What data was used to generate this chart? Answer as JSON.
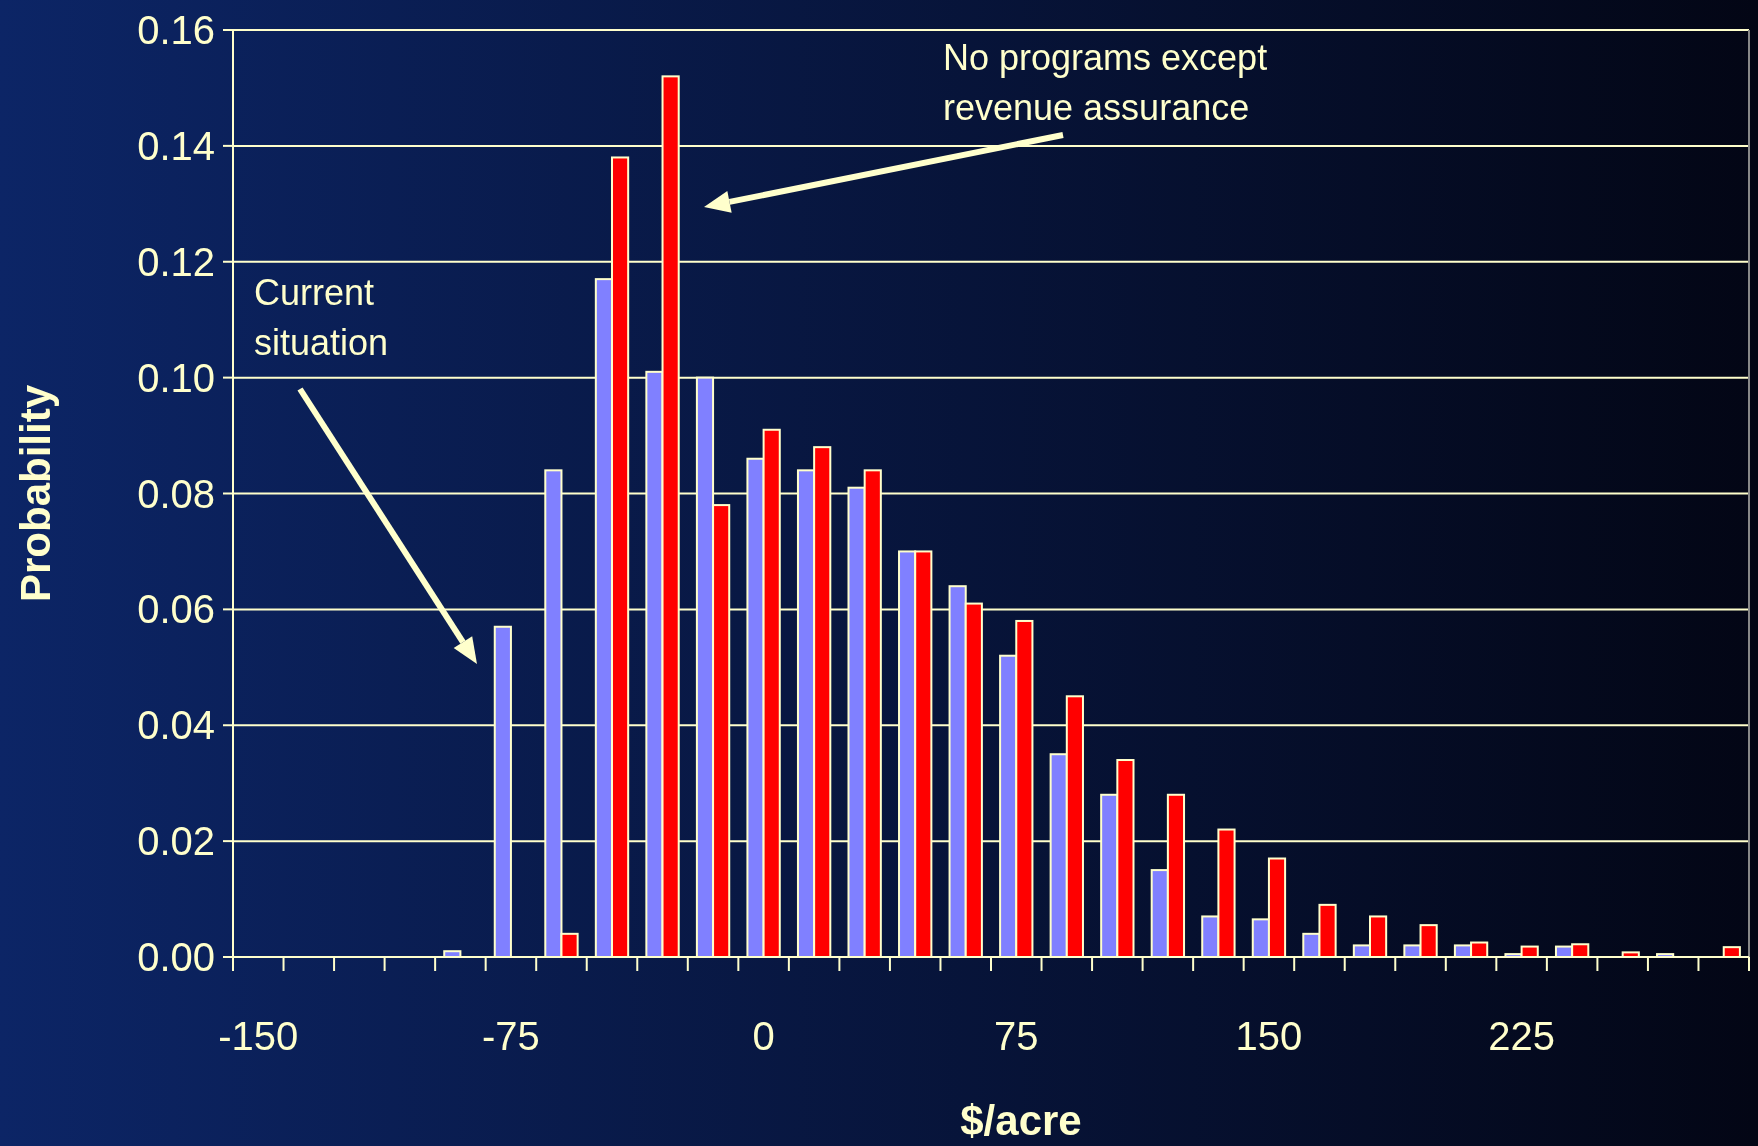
{
  "chart_data": {
    "type": "bar",
    "xlabel": "$/acre",
    "ylabel": "Probability",
    "categories": [
      "-150",
      null,
      null,
      null,
      null,
      "-75",
      null,
      null,
      null,
      null,
      "0",
      null,
      null,
      null,
      null,
      "75",
      null,
      null,
      null,
      null,
      "150",
      null,
      null,
      null,
      null,
      "225",
      null,
      null,
      null,
      null
    ],
    "series": [
      {
        "color": "#8080ff",
        "values": [
          0,
          0,
          0,
          0,
          0.001,
          0.057,
          0.084,
          0.117,
          0.101,
          0.1,
          0.086,
          0.084,
          0.081,
          0.07,
          0.064,
          0.052,
          0.035,
          0.028,
          0.015,
          0.007,
          0.0065,
          0.004,
          0.002,
          0.002,
          0.002,
          0.0005,
          0.0018,
          0,
          0.0005,
          0
        ]
      },
      {
        "color": "#ff0000",
        "values": [
          0,
          0,
          0,
          0,
          0,
          0,
          0.004,
          0.138,
          0.152,
          0.078,
          0.091,
          0.088,
          0.084,
          0.07,
          0.061,
          0.058,
          0.045,
          0.034,
          0.028,
          0.022,
          0.017,
          0.009,
          0.007,
          0.0055,
          0.0025,
          0.0018,
          0.0022,
          0.0008,
          0,
          0.0017
        ]
      }
    ],
    "ylim": [
      0,
      0.16
    ],
    "yticks": [
      {
        "value": 0,
        "label": "0.00"
      },
      {
        "value": 0.02,
        "label": "0.02"
      },
      {
        "value": 0.04,
        "label": "0.04"
      },
      {
        "value": 0.06,
        "label": "0.06"
      },
      {
        "value": 0.08,
        "label": "0.08"
      },
      {
        "value": 0.1,
        "label": "0.10"
      },
      {
        "value": 0.12,
        "label": "0.12"
      },
      {
        "value": 0.14,
        "label": "0.14"
      },
      {
        "value": 0.16,
        "label": "0.16"
      }
    ],
    "grid": "y",
    "annotations": [
      "Current situation",
      "No programs except revenue assurance"
    ]
  }
}
